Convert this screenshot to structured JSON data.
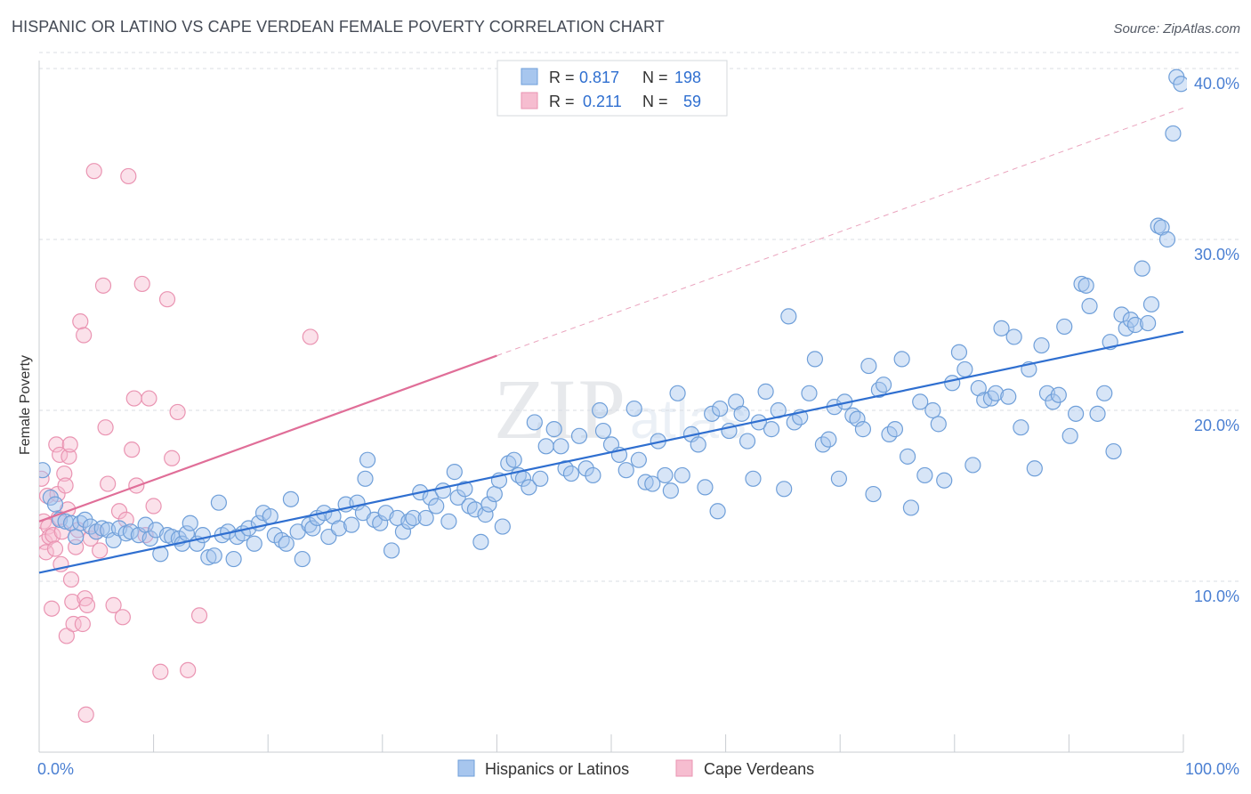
{
  "header": {
    "title": "HISPANIC OR LATINO VS CAPE VERDEAN FEMALE POVERTY CORRELATION CHART",
    "source": "Source: ZipAtlas.com"
  },
  "watermark": "ZIPatlas",
  "colors": {
    "blue_fill": "#a7c6ee",
    "blue_stroke": "#6f9fd9",
    "blue_line": "#2f6fd0",
    "pink_fill": "#f6bdd0",
    "pink_stroke": "#ea94b2",
    "pink_line": "#e06e98",
    "tick_label": "#4a7fd2",
    "grid": "#d9dde3"
  },
  "stats_box": {
    "rows": [
      {
        "r_label": "R =",
        "r_value": "0.817",
        "n_label": "N =",
        "n_value": "198",
        "series": "blue"
      },
      {
        "r_label": "R =",
        "r_value": "0.211",
        "n_label": "N =",
        "n_value": "59",
        "series": "pink"
      }
    ]
  },
  "chart_data": {
    "type": "scatter",
    "title": "HISPANIC OR LATINO VS CAPE VERDEAN FEMALE POVERTY CORRELATION CHART",
    "xlabel": "",
    "ylabel": "Female Poverty",
    "xlim": [
      0,
      100
    ],
    "ylim": [
      0,
      42
    ],
    "x_tick_labels": [
      "0.0%",
      "100.0%"
    ],
    "y_ticks": [
      10,
      20,
      30,
      40
    ],
    "y_tick_labels": [
      "10.0%",
      "20.0%",
      "30.0%",
      "40.0%"
    ],
    "grid": "horizontal dashed",
    "legend_position": "bottom-center",
    "series": [
      {
        "name": "Hispanics or Latinos",
        "color": "#a7c6ee",
        "trend": {
          "x": [
            0,
            100
          ],
          "y": [
            10.5,
            24.6
          ]
        },
        "points": [
          [
            0.3,
            16.5
          ],
          [
            1.0,
            14.9
          ],
          [
            1.4,
            14.5
          ],
          [
            1.8,
            13.6
          ],
          [
            2.3,
            13.5
          ],
          [
            2.8,
            13.4
          ],
          [
            3.2,
            12.6
          ],
          [
            3.6,
            13.4
          ],
          [
            4.0,
            13.6
          ],
          [
            4.5,
            13.2
          ],
          [
            5.0,
            12.9
          ],
          [
            5.5,
            13.1
          ],
          [
            6.0,
            13.0
          ],
          [
            6.5,
            12.4
          ],
          [
            7.0,
            13.1
          ],
          [
            7.6,
            12.8
          ],
          [
            8.0,
            12.9
          ],
          [
            8.7,
            12.7
          ],
          [
            9.3,
            13.3
          ],
          [
            9.7,
            12.5
          ],
          [
            10.2,
            13.0
          ],
          [
            10.6,
            11.6
          ],
          [
            11.2,
            12.7
          ],
          [
            11.6,
            12.6
          ],
          [
            12.2,
            12.5
          ],
          [
            12.5,
            12.2
          ],
          [
            12.9,
            12.8
          ],
          [
            13.2,
            13.4
          ],
          [
            13.8,
            12.2
          ],
          [
            14.3,
            12.7
          ],
          [
            14.8,
            11.4
          ],
          [
            15.3,
            11.5
          ],
          [
            15.7,
            14.6
          ],
          [
            16.0,
            12.7
          ],
          [
            16.5,
            12.9
          ],
          [
            17.0,
            11.3
          ],
          [
            17.3,
            12.6
          ],
          [
            17.8,
            12.8
          ],
          [
            18.3,
            13.1
          ],
          [
            18.8,
            12.2
          ],
          [
            19.2,
            13.4
          ],
          [
            19.6,
            14.0
          ],
          [
            20.2,
            13.8
          ],
          [
            20.6,
            12.7
          ],
          [
            21.2,
            12.4
          ],
          [
            21.6,
            12.2
          ],
          [
            22.0,
            14.8
          ],
          [
            22.6,
            12.9
          ],
          [
            23.0,
            11.3
          ],
          [
            23.6,
            13.3
          ],
          [
            23.9,
            13.1
          ],
          [
            24.3,
            13.7
          ],
          [
            24.9,
            14.0
          ],
          [
            25.3,
            12.6
          ],
          [
            25.7,
            13.8
          ],
          [
            26.2,
            13.1
          ],
          [
            26.8,
            14.5
          ],
          [
            27.3,
            13.3
          ],
          [
            27.8,
            14.6
          ],
          [
            28.3,
            14.0
          ],
          [
            28.7,
            17.1
          ],
          [
            28.5,
            16.0
          ],
          [
            29.3,
            13.6
          ],
          [
            29.8,
            13.4
          ],
          [
            30.3,
            14.0
          ],
          [
            30.8,
            11.8
          ],
          [
            31.3,
            13.7
          ],
          [
            31.8,
            12.9
          ],
          [
            32.3,
            13.5
          ],
          [
            32.7,
            13.7
          ],
          [
            33.3,
            15.2
          ],
          [
            33.8,
            13.7
          ],
          [
            34.2,
            14.9
          ],
          [
            34.7,
            14.4
          ],
          [
            35.3,
            15.3
          ],
          [
            35.8,
            13.5
          ],
          [
            36.3,
            16.4
          ],
          [
            36.6,
            14.9
          ],
          [
            37.2,
            15.4
          ],
          [
            37.6,
            14.4
          ],
          [
            38.1,
            14.2
          ],
          [
            38.6,
            12.3
          ],
          [
            39.0,
            13.9
          ],
          [
            39.3,
            14.5
          ],
          [
            39.8,
            15.1
          ],
          [
            40.2,
            15.9
          ],
          [
            40.5,
            13.2
          ],
          [
            41.0,
            16.9
          ],
          [
            41.5,
            17.1
          ],
          [
            41.9,
            16.2
          ],
          [
            42.3,
            16.0
          ],
          [
            42.8,
            15.5
          ],
          [
            43.3,
            19.3
          ],
          [
            43.8,
            16.0
          ],
          [
            44.3,
            17.9
          ],
          [
            45.0,
            18.9
          ],
          [
            45.6,
            17.9
          ],
          [
            46.0,
            16.6
          ],
          [
            46.5,
            16.3
          ],
          [
            47.2,
            18.5
          ],
          [
            47.8,
            16.6
          ],
          [
            48.4,
            16.2
          ],
          [
            49.0,
            20.0
          ],
          [
            49.3,
            18.8
          ],
          [
            50.0,
            18.0
          ],
          [
            50.7,
            17.4
          ],
          [
            51.3,
            16.5
          ],
          [
            52.0,
            20.1
          ],
          [
            52.4,
            17.1
          ],
          [
            53.0,
            15.8
          ],
          [
            53.6,
            15.7
          ],
          [
            54.1,
            18.2
          ],
          [
            54.7,
            16.2
          ],
          [
            55.2,
            15.3
          ],
          [
            55.8,
            21.0
          ],
          [
            56.2,
            16.2
          ],
          [
            57.0,
            18.6
          ],
          [
            57.6,
            18.0
          ],
          [
            58.2,
            15.5
          ],
          [
            58.8,
            19.8
          ],
          [
            59.5,
            20.1
          ],
          [
            59.3,
            14.1
          ],
          [
            60.3,
            18.8
          ],
          [
            60.9,
            20.5
          ],
          [
            61.4,
            19.8
          ],
          [
            61.9,
            18.2
          ],
          [
            62.4,
            16.0
          ],
          [
            62.9,
            19.3
          ],
          [
            63.5,
            21.1
          ],
          [
            64.0,
            18.9
          ],
          [
            64.6,
            20.0
          ],
          [
            65.1,
            15.4
          ],
          [
            65.5,
            25.5
          ],
          [
            66.0,
            19.3
          ],
          [
            66.5,
            19.6
          ],
          [
            67.3,
            21.0
          ],
          [
            67.8,
            23.0
          ],
          [
            68.5,
            18.0
          ],
          [
            69.0,
            18.3
          ],
          [
            69.5,
            20.2
          ],
          [
            69.9,
            16.0
          ],
          [
            70.4,
            20.5
          ],
          [
            71.1,
            19.7
          ],
          [
            71.5,
            19.5
          ],
          [
            72.0,
            18.9
          ],
          [
            72.5,
            22.6
          ],
          [
            72.9,
            15.1
          ],
          [
            73.4,
            21.2
          ],
          [
            73.8,
            21.5
          ],
          [
            74.3,
            18.6
          ],
          [
            74.8,
            18.9
          ],
          [
            75.4,
            23.0
          ],
          [
            75.9,
            17.3
          ],
          [
            76.2,
            14.3
          ],
          [
            77.0,
            20.5
          ],
          [
            77.4,
            16.2
          ],
          [
            78.1,
            20.0
          ],
          [
            78.6,
            19.2
          ],
          [
            79.1,
            15.9
          ],
          [
            79.8,
            21.6
          ],
          [
            80.4,
            23.4
          ],
          [
            80.9,
            22.4
          ],
          [
            81.6,
            16.8
          ],
          [
            82.1,
            21.3
          ],
          [
            82.6,
            20.6
          ],
          [
            83.2,
            20.7
          ],
          [
            83.6,
            21.0
          ],
          [
            84.1,
            24.8
          ],
          [
            84.7,
            20.8
          ],
          [
            85.2,
            24.3
          ],
          [
            85.8,
            19.0
          ],
          [
            86.5,
            22.4
          ],
          [
            87.0,
            16.6
          ],
          [
            87.6,
            23.8
          ],
          [
            88.1,
            21.0
          ],
          [
            88.6,
            20.5
          ],
          [
            89.1,
            20.9
          ],
          [
            89.6,
            24.9
          ],
          [
            90.1,
            18.5
          ],
          [
            90.6,
            19.8
          ],
          [
            91.1,
            27.4
          ],
          [
            91.5,
            27.3
          ],
          [
            91.8,
            26.1
          ],
          [
            92.5,
            19.8
          ],
          [
            93.1,
            21.0
          ],
          [
            93.6,
            24.0
          ],
          [
            93.9,
            17.6
          ],
          [
            94.6,
            25.6
          ],
          [
            95.0,
            24.8
          ],
          [
            95.4,
            25.3
          ],
          [
            95.8,
            25.0
          ],
          [
            96.4,
            28.3
          ],
          [
            96.9,
            25.1
          ],
          [
            97.2,
            26.2
          ],
          [
            97.8,
            30.8
          ],
          [
            98.1,
            30.7
          ],
          [
            98.6,
            30.0
          ],
          [
            99.1,
            36.2
          ],
          [
            99.4,
            39.5
          ],
          [
            99.8,
            39.1
          ]
        ]
      },
      {
        "name": "Cape Verdeans",
        "color": "#f6bdd0",
        "trend": {
          "x": [
            0,
            40
          ],
          "y": [
            13.5,
            23.2
          ]
        },
        "trend_extension": {
          "x": [
            40,
            100
          ],
          "y": [
            23.2,
            37.7
          ]
        },
        "points": [
          [
            0.2,
            16.0
          ],
          [
            0.4,
            13.5
          ],
          [
            0.5,
            12.3
          ],
          [
            0.6,
            11.7
          ],
          [
            0.7,
            15.0
          ],
          [
            0.8,
            13.2
          ],
          [
            0.9,
            12.6
          ],
          [
            1.1,
            8.4
          ],
          [
            1.2,
            12.7
          ],
          [
            1.4,
            11.9
          ],
          [
            1.5,
            18.0
          ],
          [
            1.6,
            15.1
          ],
          [
            1.7,
            13.7
          ],
          [
            1.8,
            17.4
          ],
          [
            1.9,
            11.0
          ],
          [
            2.0,
            12.9
          ],
          [
            2.2,
            16.3
          ],
          [
            2.3,
            15.6
          ],
          [
            2.4,
            6.8
          ],
          [
            2.5,
            14.2
          ],
          [
            2.6,
            17.3
          ],
          [
            2.7,
            18.0
          ],
          [
            2.8,
            10.1
          ],
          [
            2.9,
            8.8
          ],
          [
            3.0,
            7.5
          ],
          [
            3.2,
            12.0
          ],
          [
            3.4,
            13.0
          ],
          [
            3.6,
            25.2
          ],
          [
            3.8,
            7.5
          ],
          [
            3.9,
            24.4
          ],
          [
            4.0,
            9.0
          ],
          [
            4.1,
            2.2
          ],
          [
            4.2,
            8.6
          ],
          [
            4.5,
            12.5
          ],
          [
            4.8,
            34.0
          ],
          [
            5.0,
            12.9
          ],
          [
            5.3,
            11.8
          ],
          [
            5.6,
            27.3
          ],
          [
            5.8,
            19.0
          ],
          [
            6.0,
            15.7
          ],
          [
            6.5,
            8.6
          ],
          [
            7.0,
            14.1
          ],
          [
            7.3,
            7.9
          ],
          [
            7.6,
            13.6
          ],
          [
            7.8,
            33.7
          ],
          [
            8.1,
            17.7
          ],
          [
            8.3,
            20.7
          ],
          [
            8.5,
            15.6
          ],
          [
            9.0,
            27.4
          ],
          [
            9.3,
            12.7
          ],
          [
            9.6,
            20.7
          ],
          [
            10.0,
            14.4
          ],
          [
            10.6,
            4.7
          ],
          [
            11.2,
            26.5
          ],
          [
            11.6,
            17.2
          ],
          [
            12.1,
            19.9
          ],
          [
            13.0,
            4.8
          ],
          [
            14.0,
            8.0
          ],
          [
            23.7,
            24.3
          ]
        ]
      }
    ]
  },
  "legend": {
    "items": [
      {
        "label": "Hispanics or Latinos",
        "series": "blue"
      },
      {
        "label": "Cape Verdeans",
        "series": "pink"
      }
    ]
  }
}
